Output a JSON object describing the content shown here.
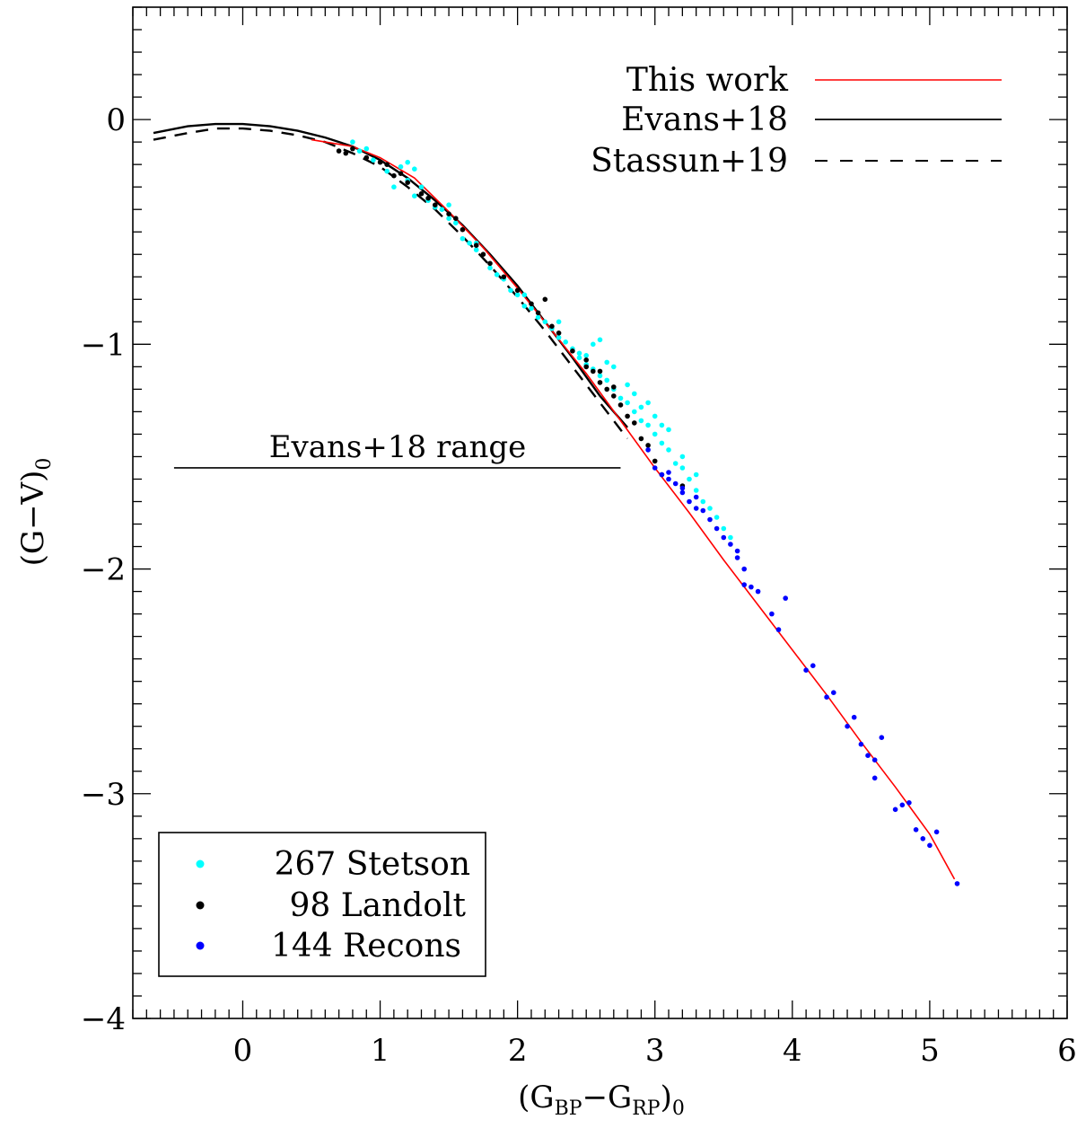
{
  "chart_data": {
    "type": "scatter",
    "xlabel_main": "(G",
    "xlabel_sub_bp": "BP",
    "xlabel_dash": "−G",
    "xlabel_sub_rp": "RP",
    "xlabel_close": ")",
    "xlabel_sub_0": "0",
    "ylabel_main": "(G−V)",
    "ylabel_sub": "0",
    "xlim": [
      -0.8,
      6.0
    ],
    "ylim": [
      -4.0,
      0.5
    ],
    "xticks": [
      0,
      1,
      2,
      3,
      4,
      5,
      6
    ],
    "xtick_labels": [
      "0",
      "1",
      "2",
      "3",
      "4",
      "5",
      "6"
    ],
    "yticks": [
      0,
      -1,
      -2,
      -3,
      -4
    ],
    "ytick_labels": [
      "0",
      "−1",
      "−2",
      "−3",
      "−4"
    ],
    "colors": {
      "red": "#ff0000",
      "cyan": "#00ffff",
      "black": "#000000",
      "blue": "#0000ff"
    },
    "lines": [
      {
        "name": "This work",
        "style": "solid",
        "color": "#ff0000",
        "x": [
          0.5,
          0.8,
          1.0,
          1.25,
          1.5,
          1.75,
          2.0,
          2.25,
          2.5,
          2.75,
          3.0,
          3.25,
          3.5,
          3.75,
          4.0,
          4.25,
          4.5,
          4.75,
          5.0,
          5.18
        ],
        "y": [
          -0.09,
          -0.12,
          -0.17,
          -0.26,
          -0.41,
          -0.57,
          -0.75,
          -0.94,
          -1.13,
          -1.34,
          -1.55,
          -1.75,
          -1.96,
          -2.16,
          -2.36,
          -2.56,
          -2.77,
          -2.97,
          -3.18,
          -3.38
        ]
      },
      {
        "name": "Evans+18",
        "style": "solid",
        "color": "#000000",
        "x": [
          -0.65,
          -0.4,
          -0.2,
          0.0,
          0.2,
          0.4,
          0.6,
          0.8,
          1.0,
          1.2,
          1.4,
          1.6,
          1.8,
          2.0,
          2.2,
          2.4,
          2.6,
          2.8
        ],
        "y": [
          -0.06,
          -0.03,
          -0.02,
          -0.02,
          -0.03,
          -0.05,
          -0.08,
          -0.12,
          -0.18,
          -0.26,
          -0.36,
          -0.47,
          -0.6,
          -0.74,
          -0.9,
          -1.06,
          -1.23,
          -1.37
        ]
      },
      {
        "name": "Stassun+19",
        "style": "dashed",
        "color": "#000000",
        "x": [
          -0.65,
          -0.4,
          -0.2,
          0.0,
          0.2,
          0.4,
          0.6,
          0.8,
          1.0,
          1.2,
          1.4,
          1.6,
          1.8,
          2.0,
          2.2,
          2.4,
          2.6,
          2.8
        ],
        "y": [
          -0.09,
          -0.06,
          -0.04,
          -0.04,
          -0.05,
          -0.07,
          -0.1,
          -0.15,
          -0.21,
          -0.3,
          -0.4,
          -0.52,
          -0.65,
          -0.79,
          -0.94,
          -1.1,
          -1.26,
          -1.42
        ]
      }
    ],
    "series": [
      {
        "name": "Stetson",
        "count_label": "267 Stetson",
        "color": "#00ffff",
        "points": [
          [
            0.8,
            -0.1
          ],
          [
            0.85,
            -0.14
          ],
          [
            0.9,
            -0.13
          ],
          [
            0.95,
            -0.18
          ],
          [
            1.05,
            -0.23
          ],
          [
            1.1,
            -0.3
          ],
          [
            1.15,
            -0.21
          ],
          [
            1.2,
            -0.27
          ],
          [
            1.25,
            -0.34
          ],
          [
            1.3,
            -0.3
          ],
          [
            1.35,
            -0.36
          ],
          [
            1.4,
            -0.39
          ],
          [
            1.45,
            -0.4
          ],
          [
            1.5,
            -0.44
          ],
          [
            1.55,
            -0.46
          ],
          [
            1.6,
            -0.53
          ],
          [
            1.65,
            -0.55
          ],
          [
            1.7,
            -0.58
          ],
          [
            1.8,
            -0.66
          ],
          [
            1.85,
            -0.69
          ],
          [
            1.9,
            -0.71
          ],
          [
            1.95,
            -0.76
          ],
          [
            2.0,
            -0.78
          ],
          [
            2.05,
            -0.83
          ],
          [
            2.1,
            -0.84
          ],
          [
            2.15,
            -0.88
          ],
          [
            2.2,
            -0.9
          ],
          [
            2.25,
            -0.93
          ],
          [
            2.3,
            -0.97
          ],
          [
            2.35,
            -0.99
          ],
          [
            2.4,
            -1.02
          ],
          [
            2.45,
            -1.06
          ],
          [
            2.5,
            -1.09
          ],
          [
            2.55,
            -1.11
          ],
          [
            2.6,
            -1.14
          ],
          [
            2.65,
            -1.16
          ],
          [
            2.7,
            -1.2
          ],
          [
            2.75,
            -1.24
          ],
          [
            2.8,
            -1.26
          ],
          [
            2.85,
            -1.3
          ],
          [
            2.9,
            -1.34
          ],
          [
            2.95,
            -1.36
          ],
          [
            3.0,
            -1.4
          ],
          [
            3.05,
            -1.44
          ],
          [
            3.1,
            -1.47
          ],
          [
            3.15,
            -1.53
          ],
          [
            3.2,
            -1.55
          ],
          [
            3.25,
            -1.6
          ],
          [
            3.3,
            -1.65
          ],
          [
            3.35,
            -1.7
          ],
          [
            3.4,
            -1.73
          ],
          [
            3.45,
            -1.77
          ],
          [
            3.5,
            -1.82
          ],
          [
            3.55,
            -1.86
          ],
          [
            2.55,
            -1.0
          ],
          [
            2.6,
            -0.98
          ],
          [
            2.9,
            -1.28
          ],
          [
            3.1,
            -1.38
          ],
          [
            1.2,
            -0.19
          ],
          [
            1.25,
            -0.22
          ],
          [
            2.7,
            -1.1
          ],
          [
            3.0,
            -1.32
          ],
          [
            3.2,
            -1.5
          ],
          [
            2.3,
            -0.9
          ],
          [
            2.05,
            -0.78
          ],
          [
            1.7,
            -0.55
          ],
          [
            1.5,
            -0.38
          ],
          [
            2.45,
            -1.04
          ],
          [
            2.8,
            -1.18
          ],
          [
            2.95,
            -1.26
          ],
          [
            2.85,
            -1.22
          ],
          [
            3.05,
            -1.36
          ],
          [
            3.3,
            -1.58
          ],
          [
            2.5,
            -1.05
          ],
          [
            2.65,
            -1.08
          ]
        ]
      },
      {
        "name": "Landolt",
        "count_label": "98 Landolt",
        "color": "#000000",
        "points": [
          [
            0.7,
            -0.14
          ],
          [
            0.75,
            -0.15
          ],
          [
            0.8,
            -0.13
          ],
          [
            0.9,
            -0.17
          ],
          [
            1.0,
            -0.19
          ],
          [
            1.05,
            -0.2
          ],
          [
            1.1,
            -0.25
          ],
          [
            1.3,
            -0.33
          ],
          [
            1.35,
            -0.35
          ],
          [
            1.4,
            -0.38
          ],
          [
            1.5,
            -0.42
          ],
          [
            1.55,
            -0.44
          ],
          [
            1.6,
            -0.49
          ],
          [
            1.7,
            -0.56
          ],
          [
            1.75,
            -0.6
          ],
          [
            1.8,
            -0.64
          ],
          [
            1.9,
            -0.7
          ],
          [
            2.0,
            -0.76
          ],
          [
            2.1,
            -0.82
          ],
          [
            2.15,
            -0.86
          ],
          [
            2.2,
            -0.8
          ],
          [
            2.25,
            -0.92
          ],
          [
            2.4,
            -1.03
          ],
          [
            2.5,
            -1.07
          ],
          [
            2.55,
            -1.12
          ],
          [
            2.6,
            -1.17
          ],
          [
            2.65,
            -1.2
          ],
          [
            2.7,
            -1.23
          ],
          [
            2.75,
            -1.27
          ],
          [
            2.8,
            -1.32
          ],
          [
            2.85,
            -1.35
          ],
          [
            2.9,
            -1.42
          ],
          [
            2.95,
            -1.45
          ],
          [
            3.0,
            -1.52
          ],
          [
            3.05,
            -1.58
          ],
          [
            3.2,
            -1.63
          ],
          [
            2.6,
            -1.12
          ],
          [
            2.7,
            -1.19
          ],
          [
            2.5,
            -1.1
          ],
          [
            1.2,
            -0.28
          ],
          [
            1.15,
            -0.24
          ],
          [
            2.3,
            -0.95
          ]
        ]
      },
      {
        "name": "Recons",
        "count_label": "144 Recons",
        "color": "#0000ff",
        "points": [
          [
            2.95,
            -1.47
          ],
          [
            3.0,
            -1.55
          ],
          [
            3.05,
            -1.58
          ],
          [
            3.1,
            -1.6
          ],
          [
            3.15,
            -1.62
          ],
          [
            3.2,
            -1.66
          ],
          [
            3.25,
            -1.7
          ],
          [
            3.3,
            -1.73
          ],
          [
            3.35,
            -1.74
          ],
          [
            3.4,
            -1.78
          ],
          [
            3.45,
            -1.82
          ],
          [
            3.5,
            -1.86
          ],
          [
            3.55,
            -1.89
          ],
          [
            3.6,
            -1.95
          ],
          [
            3.65,
            -2.0
          ],
          [
            3.7,
            -2.08
          ],
          [
            3.75,
            -2.1
          ],
          [
            3.65,
            -2.07
          ],
          [
            3.85,
            -2.2
          ],
          [
            3.9,
            -2.27
          ],
          [
            3.95,
            -2.13
          ],
          [
            4.1,
            -2.45
          ],
          [
            4.15,
            -2.43
          ],
          [
            4.25,
            -2.57
          ],
          [
            4.3,
            -2.55
          ],
          [
            4.4,
            -2.7
          ],
          [
            4.45,
            -2.66
          ],
          [
            4.5,
            -2.78
          ],
          [
            4.55,
            -2.83
          ],
          [
            4.6,
            -2.85
          ],
          [
            4.6,
            -2.93
          ],
          [
            4.65,
            -2.75
          ],
          [
            4.75,
            -3.07
          ],
          [
            4.8,
            -3.05
          ],
          [
            4.85,
            -3.04
          ],
          [
            4.9,
            -3.16
          ],
          [
            4.95,
            -3.2
          ],
          [
            5.0,
            -3.23
          ],
          [
            5.05,
            -3.17
          ],
          [
            5.2,
            -3.4
          ],
          [
            3.6,
            -1.92
          ],
          [
            3.2,
            -1.64
          ],
          [
            3.1,
            -1.57
          ],
          [
            3.3,
            -1.68
          ]
        ]
      }
    ],
    "legend_top": [
      {
        "label": "This work",
        "style": "solid",
        "color": "#ff0000"
      },
      {
        "label": "Evans+18",
        "style": "solid",
        "color": "#000000"
      },
      {
        "label": "Stassun+19",
        "style": "dashed",
        "color": "#000000"
      }
    ],
    "range_annotation": {
      "label": "Evans+18 range",
      "x_from": -0.5,
      "x_to": 2.75,
      "y": -1.55
    }
  }
}
